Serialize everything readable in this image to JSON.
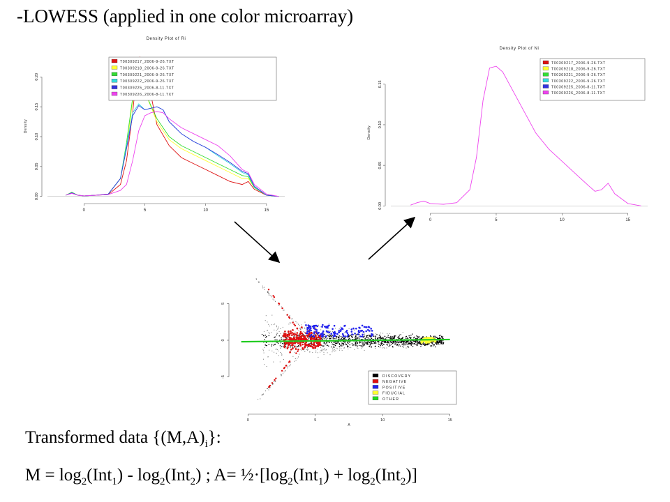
{
  "slide_title": "-LOWESS (applied in one color microarray)",
  "formula": {
    "label_prefix": "Transformed data {(M,A)",
    "label_sub": "i",
    "label_suffix": "}:",
    "m_def": "M = log",
    "two": "2",
    "one": "1",
    "int": "(Int",
    "close": ")",
    "minus": " - log",
    "a_def": " ; A= ½·[log",
    "plus": " + log",
    "end": ")]"
  },
  "chart_data": [
    {
      "type": "line",
      "title": "Density Plot of Ri",
      "ylabel": "Density",
      "xlim": [
        -3,
        16.5
      ],
      "ylim": [
        -0.005,
        0.24
      ],
      "xticks": [
        "0",
        "5",
        "10",
        "15"
      ],
      "yticks": [
        "0.00",
        "0.05",
        "0.10",
        "0.15",
        "0.20"
      ],
      "legend_position": "top-right",
      "series": [
        {
          "name": "T00309217_2006-9-26.TXT",
          "color": "#dd1111",
          "x": [
            -1.5,
            -1,
            -0.5,
            0,
            1,
            2,
            3,
            3.5,
            4,
            4.3,
            4.6,
            5,
            5.5,
            6,
            7,
            8,
            9,
            10,
            11,
            12,
            13,
            13.5,
            14,
            15,
            16
          ],
          "y": [
            0.002,
            0.006,
            0.002,
            0.001,
            0.002,
            0.003,
            0.02,
            0.06,
            0.14,
            0.2,
            0.233,
            0.22,
            0.17,
            0.12,
            0.085,
            0.065,
            0.055,
            0.045,
            0.035,
            0.025,
            0.02,
            0.025,
            0.012,
            0.002,
            0.0
          ]
        },
        {
          "name": "T00309218_2006-9-26.TXT",
          "color": "#ffff33",
          "x": [
            -1.5,
            -1,
            -0.5,
            0,
            1,
            2,
            3,
            3.5,
            4,
            4.5,
            5,
            5.5,
            6,
            7,
            8,
            9,
            10,
            11,
            12,
            13,
            13.5,
            14,
            15,
            16
          ],
          "y": [
            0.002,
            0.007,
            0.002,
            0.001,
            0.002,
            0.004,
            0.03,
            0.08,
            0.16,
            0.19,
            0.175,
            0.15,
            0.125,
            0.095,
            0.08,
            0.07,
            0.06,
            0.05,
            0.04,
            0.03,
            0.03,
            0.015,
            0.002,
            0.0
          ]
        },
        {
          "name": "T00309221_2006-9-26.TXT",
          "color": "#33dd33",
          "x": [
            -1.5,
            -1,
            -0.5,
            0,
            1,
            2,
            3,
            3.5,
            4,
            4.5,
            5,
            5.5,
            6,
            7,
            8,
            9,
            10,
            11,
            12,
            13,
            13.5,
            14,
            15,
            16
          ],
          "y": [
            0.002,
            0.007,
            0.002,
            0.001,
            0.002,
            0.004,
            0.03,
            0.09,
            0.165,
            0.2,
            0.175,
            0.152,
            0.13,
            0.1,
            0.085,
            0.075,
            0.065,
            0.055,
            0.045,
            0.035,
            0.033,
            0.015,
            0.002,
            0.0
          ]
        },
        {
          "name": "T00309222_2006-9-26.TXT",
          "color": "#33dddd",
          "x": [
            -1.5,
            -1,
            -0.5,
            0,
            1,
            2,
            3,
            3.5,
            4,
            4.5,
            5,
            6,
            6.5,
            7,
            8,
            9,
            10,
            11,
            12,
            13,
            13.5,
            14,
            15,
            16
          ],
          "y": [
            0.002,
            0.006,
            0.002,
            0.001,
            0.002,
            0.004,
            0.03,
            0.085,
            0.14,
            0.155,
            0.145,
            0.15,
            0.145,
            0.125,
            0.105,
            0.092,
            0.082,
            0.068,
            0.055,
            0.04,
            0.036,
            0.016,
            0.002,
            0.0
          ]
        },
        {
          "name": "T00309225_2006-8-11.TXT",
          "color": "#3333dd",
          "x": [
            -1.5,
            -1,
            -0.5,
            0,
            1,
            2,
            3,
            3.5,
            4,
            4.5,
            5,
            6,
            6.5,
            7,
            8,
            9,
            10,
            11,
            12,
            13,
            13.5,
            14,
            15,
            16
          ],
          "y": [
            0.002,
            0.006,
            0.002,
            0.001,
            0.002,
            0.004,
            0.03,
            0.08,
            0.135,
            0.152,
            0.145,
            0.15,
            0.145,
            0.125,
            0.105,
            0.092,
            0.082,
            0.07,
            0.057,
            0.042,
            0.038,
            0.017,
            0.002,
            0.0
          ]
        },
        {
          "name": "T00309226_2006-8-11.TXT",
          "color": "#ee44ee",
          "x": [
            -1.5,
            -1,
            -0.5,
            0,
            1,
            2,
            3,
            3.5,
            4,
            4.5,
            5,
            5.5,
            6,
            6.5,
            7,
            8,
            9,
            10,
            11,
            12,
            13,
            13.5,
            14,
            15,
            16
          ],
          "y": [
            0.002,
            0.005,
            0.002,
            0.001,
            0.002,
            0.003,
            0.01,
            0.02,
            0.06,
            0.11,
            0.135,
            0.14,
            0.142,
            0.14,
            0.13,
            0.115,
            0.105,
            0.095,
            0.085,
            0.068,
            0.045,
            0.04,
            0.02,
            0.004,
            0.0
          ]
        }
      ]
    },
    {
      "type": "line",
      "title": "Density Plot of Ni",
      "ylabel": "Density",
      "xlim": [
        -3,
        16.5
      ],
      "ylim": [
        -0.004,
        0.185
      ],
      "xticks": [
        "0",
        "5",
        "10",
        "15"
      ],
      "yticks": [
        "0.00",
        "0.05",
        "0.10",
        "0.15"
      ],
      "legend_position": "top-right",
      "series": [
        {
          "name": "T00309217_2006-9-26.TXT",
          "color": "#dd1111"
        },
        {
          "name": "T00309218_2006-9-26.TXT",
          "color": "#ffff33"
        },
        {
          "name": "T00309221_2006-9-26.TXT",
          "color": "#33dd33"
        },
        {
          "name": "T00309222_2006-9-26.TXT",
          "color": "#33dddd"
        },
        {
          "name": "T00309225_2006-8-11.TXT",
          "color": "#3333dd"
        },
        {
          "name": "T00309226_2006-8-11.TXT",
          "color": "#ee44ee",
          "x": [
            -1.5,
            -1,
            -0.5,
            0,
            1,
            2,
            3,
            3.5,
            4,
            4.5,
            5,
            5.5,
            6,
            7,
            8,
            9,
            10,
            11,
            12,
            12.5,
            13,
            13.5,
            14,
            15,
            16
          ],
          "y": [
            0.001,
            0.004,
            0.006,
            0.003,
            0.002,
            0.004,
            0.02,
            0.06,
            0.13,
            0.17,
            0.172,
            0.165,
            0.15,
            0.12,
            0.09,
            0.07,
            0.055,
            0.04,
            0.025,
            0.018,
            0.02,
            0.028,
            0.015,
            0.003,
            0.0
          ]
        }
      ]
    },
    {
      "type": "scatter",
      "title": "",
      "xlabel": "A",
      "ylabel": "",
      "xlim": [
        -1,
        16
      ],
      "ylim": [
        -9.5,
        9.5
      ],
      "xticks": [
        "0",
        "5",
        "10",
        "15"
      ],
      "yticks": [
        "5",
        "0",
        "-5"
      ],
      "legend_position": "bottom-right",
      "categories": [
        {
          "name": "DISCOVERY",
          "color": "#000000"
        },
        {
          "name": "NEGATIVE",
          "color": "#dd1111"
        },
        {
          "name": "POSITIVE",
          "color": "#2222ee"
        },
        {
          "name": "FIDUCIAL",
          "color": "#ffff33"
        },
        {
          "name": "OTHER",
          "color": "#22dd22"
        }
      ],
      "loess_line": {
        "x": [
          -0.5,
          15
        ],
        "y": [
          -0.2,
          0.1
        ],
        "color": "#22cc22"
      }
    }
  ]
}
